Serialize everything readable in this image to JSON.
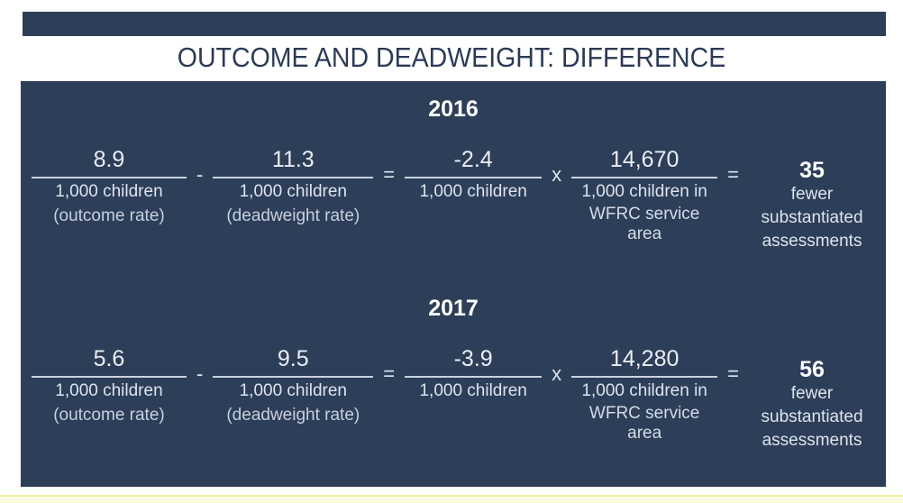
{
  "title": "OUTCOME AND DEADWEIGHT: DIFFERENCE",
  "colors": {
    "navy": "#2d3e58",
    "title_text": "#2b3a55",
    "text_soft": "#e3e9f2",
    "text_dim": "#c7cfdd",
    "fraction_bar": "#c9d2df",
    "result_white": "#ffffff",
    "footer_fill": "#fbfbe4",
    "footer_line": "#eeeea2"
  },
  "rows": [
    {
      "year": "2016",
      "op_minus": "-",
      "op_equals1": "=",
      "op_times": "x",
      "op_equals2": "=",
      "fractions": [
        {
          "numerator": "8.9",
          "denominator": "1,000 children",
          "note": "(outcome rate)"
        },
        {
          "numerator": "11.3",
          "denominator": "1,000 children",
          "note": "(deadweight rate)"
        },
        {
          "numerator": "-2.4",
          "denominator": "1,000 children"
        },
        {
          "numerator": "14,670",
          "denominator": "1,000 children in",
          "denominator2": "WFRC service area"
        }
      ],
      "result": {
        "value": "35",
        "line1": "fewer",
        "line2": "substantiated",
        "line3": "assessments"
      }
    },
    {
      "year": "2017",
      "op_minus": "-",
      "op_equals1": "=",
      "op_times": "x",
      "op_equals2": "=",
      "fractions": [
        {
          "numerator": "5.6",
          "denominator": "1,000 children",
          "note": "(outcome rate)"
        },
        {
          "numerator": "9.5",
          "denominator": "1,000 children",
          "note": "(deadweight rate)"
        },
        {
          "numerator": "-3.9",
          "denominator": "1,000 children"
        },
        {
          "numerator": "14,280",
          "denominator": "1,000 children in",
          "denominator2": "WFRC service area"
        }
      ],
      "result": {
        "value": "56",
        "line1": "fewer",
        "line2": "substantiated",
        "line3": "assessments"
      }
    }
  ]
}
